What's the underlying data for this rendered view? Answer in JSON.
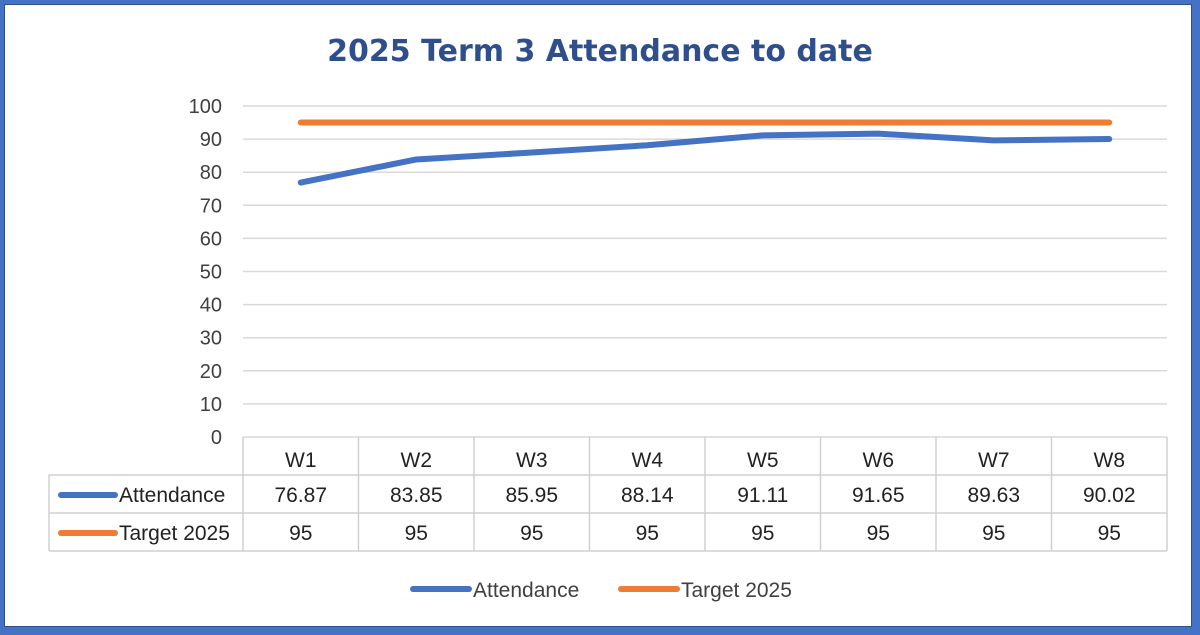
{
  "chart_data": {
    "type": "line",
    "title": "2025 Term 3 Attendance to date",
    "categories": [
      "W1",
      "W2",
      "W3",
      "W4",
      "W5",
      "W6",
      "W7",
      "W8"
    ],
    "ylim": [
      0,
      100
    ],
    "yticks": [
      0,
      10,
      20,
      30,
      40,
      50,
      60,
      70,
      80,
      90,
      100
    ],
    "grid": true,
    "legend_position": "bottom",
    "data_table": true,
    "series": [
      {
        "name": "Attendance",
        "color": "#4472c4",
        "values": [
          76.87,
          83.85,
          85.95,
          88.14,
          91.11,
          91.65,
          89.63,
          90.02
        ],
        "labels": [
          "76.87",
          "83.85",
          "85.95",
          "88.14",
          "91.11",
          "91.65",
          "89.63",
          "90.02"
        ]
      },
      {
        "name": "Target 2025",
        "color": "#ed7d31",
        "values": [
          95,
          95,
          95,
          95,
          95,
          95,
          95,
          95
        ],
        "labels": [
          "95",
          "95",
          "95",
          "95",
          "95",
          "95",
          "95",
          "95"
        ]
      }
    ]
  }
}
